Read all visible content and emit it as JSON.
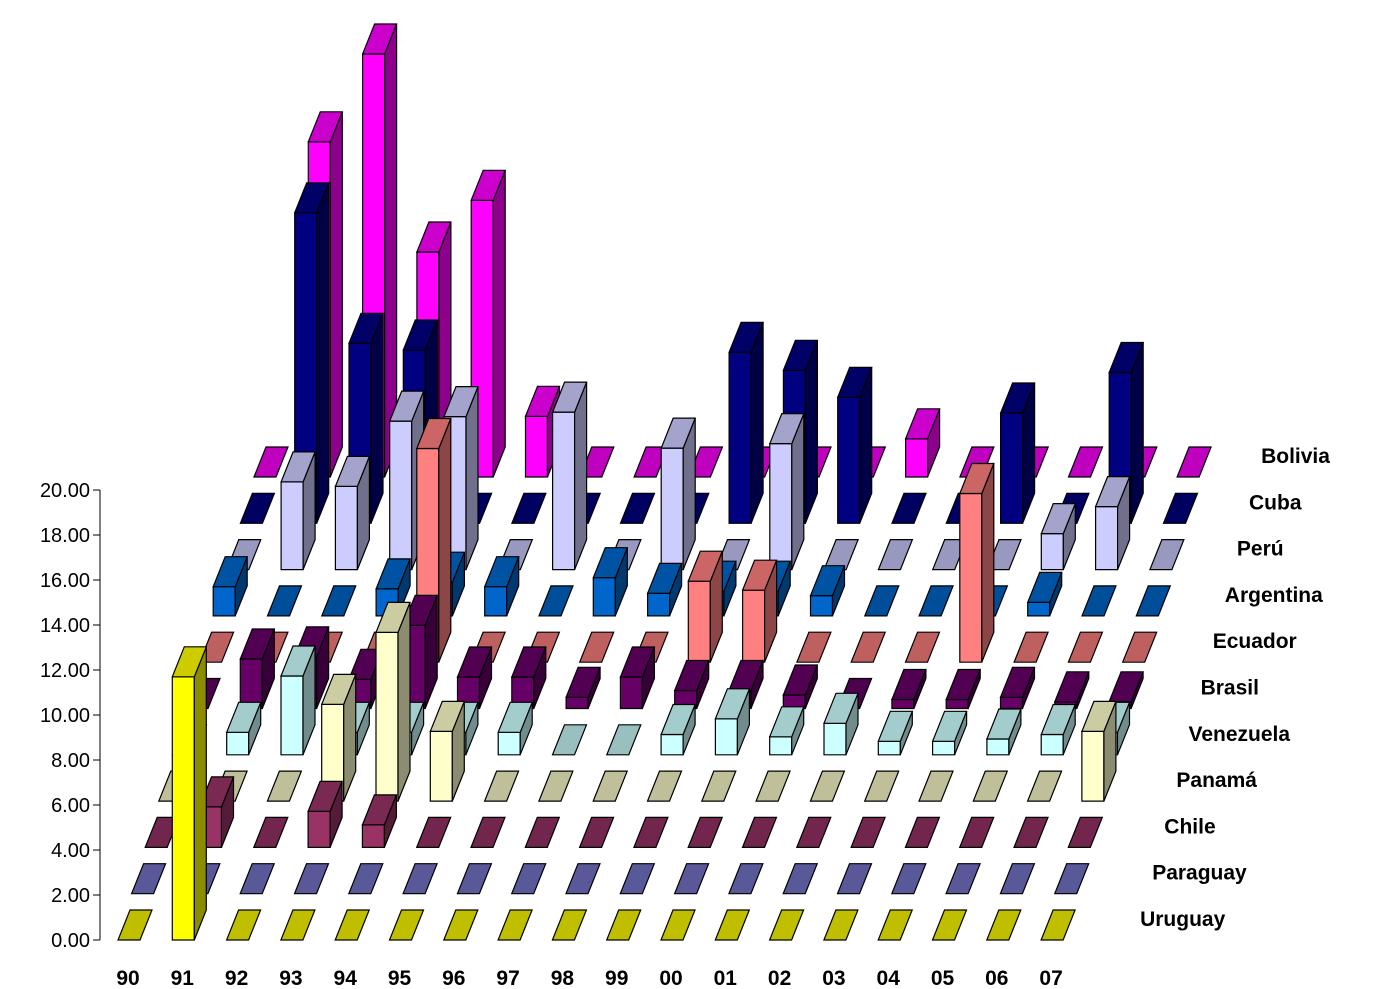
{
  "chart_data": {
    "type": "bar",
    "subtype": "3d-column",
    "title": "",
    "xlabel": "",
    "ylabel": "",
    "ylim": [
      0,
      20
    ],
    "y_ticks": [
      "0.00",
      "2.00",
      "4.00",
      "6.00",
      "8.00",
      "10.00",
      "12.00",
      "14.00",
      "16.00",
      "18.00",
      "20.00"
    ],
    "categories": [
      "90",
      "91",
      "92",
      "93",
      "94",
      "95",
      "96",
      "97",
      "98",
      "99",
      "00",
      "01",
      "02",
      "03",
      "04",
      "05",
      "06",
      "07"
    ],
    "series": [
      {
        "name": "Uruguay",
        "color": "#ffff00",
        "values": [
          0,
          11.7,
          0,
          0,
          0,
          0,
          0,
          0,
          0,
          0,
          0,
          0,
          0,
          0,
          0,
          0,
          0,
          0
        ]
      },
      {
        "name": "Paraguay",
        "color": "#7777cc",
        "values": [
          0,
          0,
          0,
          0,
          0,
          0,
          0,
          0,
          0,
          0,
          0,
          0,
          0,
          0,
          0,
          0,
          0,
          0
        ]
      },
      {
        "name": "Chile",
        "color": "#993366",
        "values": [
          0,
          1.8,
          0,
          1.6,
          1.0,
          0,
          0,
          0,
          0,
          0,
          0,
          0,
          0,
          0,
          0,
          0,
          0,
          0
        ]
      },
      {
        "name": "Panamá",
        "color": "#ffffcc",
        "values": [
          0,
          0,
          0,
          4.3,
          7.5,
          3.1,
          0,
          0,
          0,
          0,
          0,
          0,
          0,
          0,
          0,
          0,
          0,
          3.1
        ]
      },
      {
        "name": "Venezuela",
        "color": "#ccffff",
        "values": [
          0,
          1.0,
          3.5,
          1.0,
          1.0,
          1.0,
          1.0,
          0,
          0,
          0.9,
          1.6,
          0.8,
          1.4,
          0.6,
          0.6,
          0.7,
          0.9,
          1.0
        ]
      },
      {
        "name": "Brasil",
        "color": "#660066",
        "values": [
          0,
          2.2,
          2.3,
          1.3,
          3.7,
          1.4,
          1.4,
          0.5,
          1.4,
          0.8,
          0.8,
          0.6,
          0,
          0.4,
          0.4,
          0.5,
          0.3,
          0.3
        ]
      },
      {
        "name": "Ecuador",
        "color": "#ff8080",
        "values": [
          0,
          0,
          0,
          0,
          9.5,
          0,
          0,
          0,
          0,
          3.6,
          3.2,
          0,
          0,
          0,
          7.5,
          0,
          0,
          0
        ]
      },
      {
        "name": "Argentina",
        "color": "#0066cc",
        "values": [
          1.3,
          0,
          0,
          1.2,
          1.5,
          1.3,
          0,
          1.7,
          1.0,
          1.1,
          1.1,
          0.9,
          0,
          0,
          0,
          0.6,
          0,
          0
        ]
      },
      {
        "name": "Perú",
        "color": "#ccccff",
        "values": [
          0,
          3.9,
          3.7,
          6.6,
          6.8,
          0,
          7.0,
          0,
          5.4,
          0,
          5.6,
          0,
          0,
          0,
          0,
          1.6,
          2.8,
          0
        ]
      },
      {
        "name": "Cuba",
        "color": "#000080",
        "values": [
          0,
          13.8,
          8.0,
          7.7,
          0,
          0,
          0,
          0,
          0,
          7.6,
          6.8,
          5.6,
          0,
          0,
          4.9,
          0,
          6.7,
          0
        ]
      },
      {
        "name": "Bolivia",
        "color": "#ff00ff",
        "values": [
          0,
          14.9,
          18.8,
          10.0,
          12.3,
          2.7,
          0,
          0,
          0,
          0,
          0,
          0,
          1.7,
          0,
          0,
          0,
          0,
          0
        ]
      }
    ]
  }
}
